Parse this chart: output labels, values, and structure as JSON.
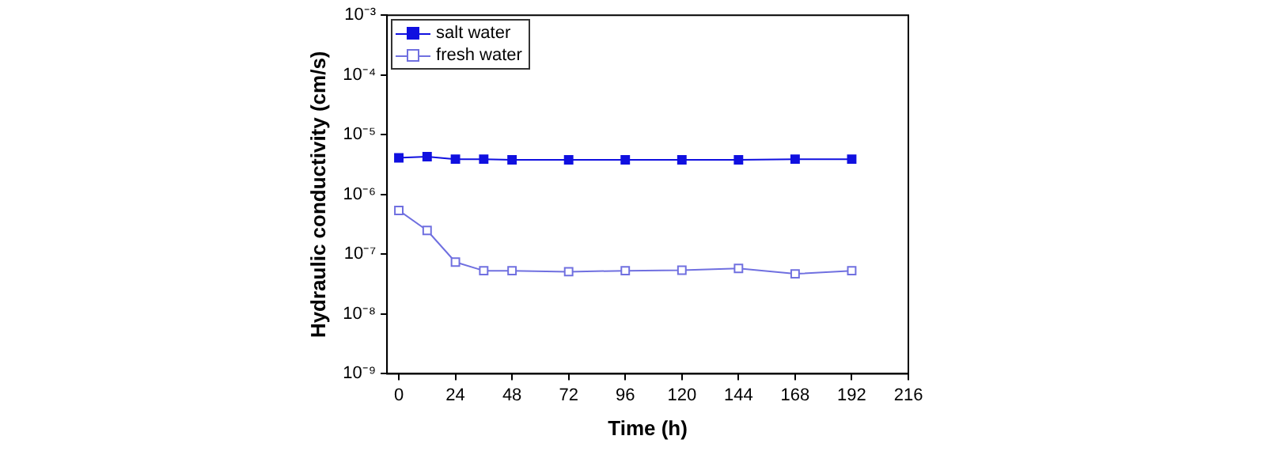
{
  "chart_data": {
    "type": "line",
    "xlabel": "Time (h)",
    "ylabel": "Hydraulic conductivity (cm/s)",
    "x": [
      0,
      12,
      24,
      36,
      48,
      72,
      96,
      120,
      144,
      168,
      192
    ],
    "series": [
      {
        "name": "salt water",
        "color": "#1010e0",
        "values": [
          4.1e-06,
          4.3e-06,
          3.9e-06,
          3.9e-06,
          3.8e-06,
          3.8e-06,
          3.8e-06,
          3.8e-06,
          3.8e-06,
          3.9e-06,
          3.9e-06
        ]
      },
      {
        "name": "fresh water",
        "color": "#7070e0",
        "values": [
          5.4e-07,
          2.5e-07,
          7.4e-08,
          5.3e-08,
          5.3e-08,
          5.1e-08,
          5.3e-08,
          5.4e-08,
          5.8e-08,
          4.7e-08,
          5.3e-08
        ]
      }
    ],
    "log": true,
    "xlim": [
      -5,
      216
    ],
    "xticks": [
      0,
      24,
      48,
      72,
      96,
      120,
      144,
      168,
      192,
      216
    ],
    "ylim": [
      1e-09,
      0.001
    ],
    "yticks": [
      {
        "value": 1e-09,
        "label": "10⁻⁹"
      },
      {
        "value": 1e-08,
        "label": "10⁻⁸"
      },
      {
        "value": 1e-07,
        "label": "10⁻⁷"
      },
      {
        "value": 1e-06,
        "label": "10⁻⁶"
      },
      {
        "value": 1e-05,
        "label": "10⁻⁵"
      },
      {
        "value": 0.0001,
        "label": "10⁻⁴"
      },
      {
        "value": 0.001,
        "label": "10⁻³"
      }
    ],
    "marker": "square",
    "line_style": "solid",
    "grid": false,
    "legend": "top left"
  }
}
